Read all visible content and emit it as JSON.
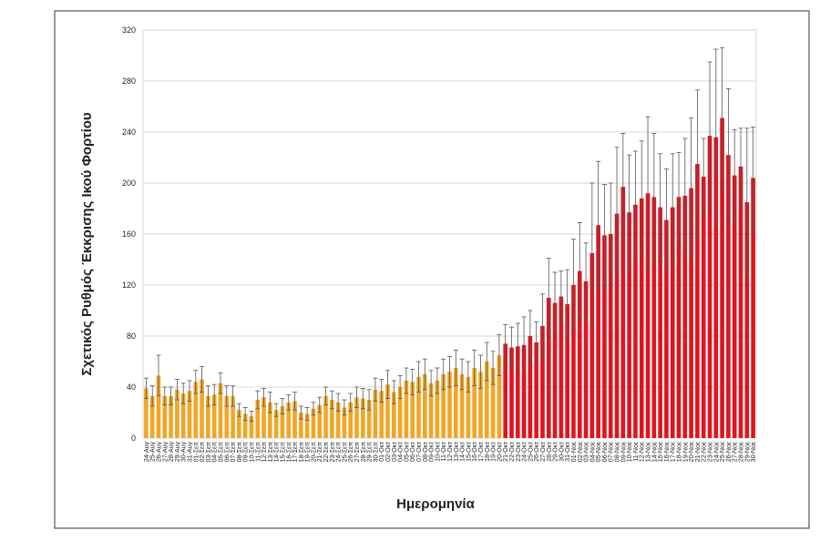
{
  "chart_data": {
    "type": "bar",
    "y_label": "Σχετικός Ρυθμός Έκκρισης Ικού Φορτίου",
    "x_label": "Ημερομηνία",
    "categories": [
      "24-Αυγ",
      "25-Αυγ",
      "26-Αυγ",
      "27-Αυγ",
      "28-Αυγ",
      "29-Αυγ",
      "30-Αυγ",
      "31-Αυγ",
      "01-Σεπ",
      "02-Σεπ",
      "03-Σεπ",
      "04-Σεπ",
      "05-Σεπ",
      "06-Σεπ",
      "07-Σεπ",
      "08-Σεπ",
      "09-Σεπ",
      "10-Σεπ",
      "11-Σεπ",
      "12-Σεπ",
      "13-Σεπ",
      "14-Σεπ",
      "15-Σεπ",
      "16-Σεπ",
      "17-Σεπ",
      "18-Σεπ",
      "19-Σεπ",
      "20-Σεπ",
      "21-Σεπ",
      "22-Σεπ",
      "23-Σεπ",
      "24-Σεπ",
      "25-Σεπ",
      "26-Σεπ",
      "27-Σεπ",
      "28-Σεπ",
      "29-Σεπ",
      "30-Σεπ",
      "01-Οκτ",
      "02-Οκτ",
      "03-Οκτ",
      "04-Οκτ",
      "05-Οκτ",
      "06-Οκτ",
      "07-Οκτ",
      "08-Οκτ",
      "09-Οκτ",
      "10-Οκτ",
      "11-Οκτ",
      "12-Οκτ",
      "13-Οκτ",
      "14-Οκτ",
      "15-Οκτ",
      "16-Οκτ",
      "17-Οκτ",
      "18-Οκτ",
      "19-Οκτ",
      "20-Οκτ",
      "21-Οκτ",
      "22-Οκτ",
      "23-Οκτ",
      "24-Οκτ",
      "25-Οκτ",
      "26-Οκτ",
      "27-Οκτ",
      "28-Οκτ",
      "29-Οκτ",
      "30-Οκτ",
      "31-Οκτ",
      "01-Νοε",
      "02-Νοε",
      "03-Νοε",
      "04-Νοε",
      "05-Νοε",
      "06-Νοε",
      "07-Νοε",
      "08-Νοε",
      "09-Νοε",
      "10-Νοε",
      "11-Νοε",
      "12-Νοε",
      "13-Νοε",
      "14-Νοε",
      "15-Νοε",
      "16-Νοε",
      "17-Νοε",
      "18-Νοε",
      "19-Νοε",
      "20-Νοε",
      "21-Νοε",
      "22-Νοε",
      "23-Νοε",
      "24-Νοε",
      "25-Νοε",
      "26-Νοε",
      "27-Νοε",
      "28-Νοε",
      "29-Νοε",
      "30-Νοε"
    ],
    "series": [
      {
        "color": "#f2a626",
        "values": [
          39,
          33,
          49,
          33,
          33,
          38,
          35,
          37,
          44,
          46,
          33,
          34,
          43,
          33,
          33,
          22,
          19,
          17,
          30,
          32,
          28,
          22,
          25,
          28,
          29,
          20,
          19,
          23,
          26,
          33,
          30,
          28,
          24,
          28,
          32,
          31,
          30,
          38,
          37,
          42,
          36,
          40,
          45,
          44,
          48,
          50,
          43,
          45,
          50,
          52,
          55,
          50,
          48,
          55,
          52,
          60,
          55,
          65,
          null,
          null,
          null,
          null,
          null,
          null,
          null,
          null,
          null,
          null,
          null,
          null,
          null,
          null,
          null,
          null,
          null,
          null,
          null,
          null,
          null,
          null,
          null,
          null,
          null,
          null,
          null,
          null,
          null,
          null,
          null,
          null,
          null,
          null,
          null,
          null,
          null,
          null,
          null,
          null,
          null
        ],
        "errors": [
          8,
          8,
          16,
          7,
          7,
          8,
          8,
          8,
          9,
          10,
          8,
          8,
          8,
          8,
          8,
          5,
          5,
          4,
          7,
          7,
          8,
          5,
          6,
          6,
          7,
          5,
          5,
          5,
          6,
          7,
          7,
          7,
          6,
          7,
          8,
          8,
          8,
          9,
          9,
          11,
          9,
          9,
          10,
          10,
          12,
          12,
          10,
          10,
          12,
          12,
          14,
          12,
          12,
          14,
          13,
          15,
          13,
          16,
          null,
          null,
          null,
          null,
          null,
          null,
          null,
          null,
          null,
          null,
          null,
          null,
          null,
          null,
          null,
          null,
          null,
          null,
          null,
          null,
          null,
          null,
          null,
          null,
          null,
          null,
          null,
          null,
          null,
          null,
          null,
          null,
          null,
          null,
          null,
          null,
          null,
          null,
          null,
          null,
          null
        ]
      },
      {
        "color": "#e0141e",
        "values": [
          null,
          null,
          null,
          null,
          null,
          null,
          null,
          null,
          null,
          null,
          null,
          null,
          null,
          null,
          null,
          null,
          null,
          null,
          null,
          null,
          null,
          null,
          null,
          null,
          null,
          null,
          null,
          null,
          null,
          null,
          null,
          null,
          null,
          null,
          null,
          null,
          null,
          null,
          null,
          null,
          null,
          null,
          null,
          null,
          null,
          null,
          null,
          null,
          null,
          null,
          null,
          null,
          null,
          null,
          null,
          null,
          null,
          null,
          74,
          71,
          72,
          73,
          80,
          75,
          88,
          110,
          106,
          111,
          105,
          120,
          131,
          123,
          145,
          167,
          159,
          160,
          176,
          197,
          177,
          183,
          188,
          192,
          189,
          181,
          171,
          181,
          189,
          190,
          196,
          215,
          205,
          237,
          236,
          251,
          222,
          206,
          213,
          185,
          204
        ],
        "errors": [
          null,
          null,
          null,
          null,
          null,
          null,
          null,
          null,
          null,
          null,
          null,
          null,
          null,
          null,
          null,
          null,
          null,
          null,
          null,
          null,
          null,
          null,
          null,
          null,
          null,
          null,
          null,
          null,
          null,
          null,
          null,
          null,
          null,
          null,
          null,
          null,
          null,
          null,
          null,
          null,
          null,
          null,
          null,
          null,
          null,
          null,
          null,
          null,
          null,
          null,
          null,
          null,
          null,
          null,
          null,
          null,
          null,
          null,
          15,
          16,
          18,
          22,
          20,
          16,
          25,
          31,
          24,
          20,
          27,
          36,
          38,
          30,
          55,
          50,
          40,
          40,
          52,
          42,
          45,
          42,
          45,
          60,
          50,
          42,
          40,
          42,
          35,
          45,
          55,
          58,
          30,
          58,
          69,
          55,
          52,
          36,
          30,
          58,
          40
        ]
      }
    ],
    "ylim": [
      0,
      320
    ],
    "yticks": [
      0,
      40,
      80,
      120,
      160,
      200,
      240,
      280,
      320
    ],
    "grid": true
  }
}
